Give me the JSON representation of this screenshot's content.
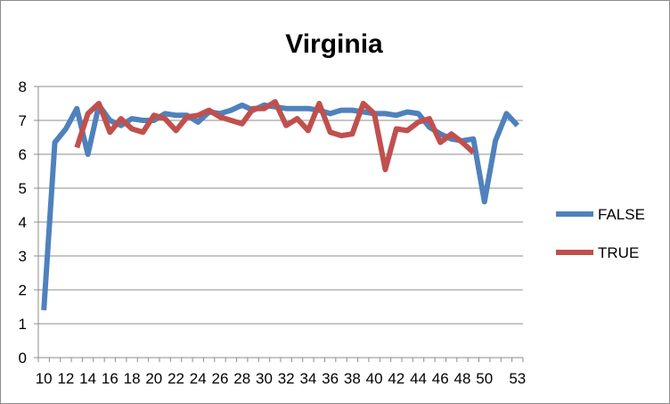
{
  "chart_data": {
    "type": "line",
    "title": "Virginia",
    "xlabel": "",
    "ylabel": "",
    "ylim": [
      0,
      8
    ],
    "yticks": [
      "0",
      "1",
      "2",
      "3",
      "4",
      "5",
      "6",
      "7",
      "8"
    ],
    "x": [
      10,
      11,
      12,
      13,
      14,
      15,
      16,
      17,
      18,
      19,
      20,
      21,
      22,
      23,
      24,
      25,
      26,
      27,
      28,
      29,
      30,
      31,
      32,
      33,
      34,
      35,
      36,
      37,
      38,
      39,
      40,
      41,
      42,
      43,
      44,
      45,
      46,
      47,
      48,
      49,
      50,
      51,
      52,
      53
    ],
    "xtick_labels": [
      "10",
      "12",
      "14",
      "16",
      "18",
      "20",
      "22",
      "24",
      "26",
      "28",
      "30",
      "32",
      "34",
      "36",
      "38",
      "40",
      "42",
      "44",
      "46",
      "48",
      "50",
      "53"
    ],
    "xtick_indices": [
      0,
      2,
      4,
      6,
      8,
      10,
      12,
      14,
      16,
      18,
      20,
      22,
      24,
      26,
      28,
      30,
      32,
      34,
      36,
      38,
      40,
      43
    ],
    "grid": true,
    "legend_position": "right",
    "series": [
      {
        "name": "FALSE",
        "color": "#4f81bd",
        "values": [
          1.4,
          6.35,
          6.75,
          7.35,
          6.0,
          7.45,
          7.0,
          6.85,
          7.05,
          7.0,
          7.0,
          7.2,
          7.15,
          7.15,
          6.95,
          7.25,
          7.2,
          7.3,
          7.45,
          7.3,
          7.45,
          7.4,
          7.35,
          7.35,
          7.35,
          7.3,
          7.2,
          7.3,
          7.3,
          7.25,
          7.2,
          7.2,
          7.15,
          7.25,
          7.2,
          6.8,
          6.6,
          6.45,
          6.4,
          6.45,
          4.6,
          6.4,
          7.2,
          6.85
        ]
      },
      {
        "name": "TRUE",
        "color": "#c0504d",
        "values": [
          null,
          null,
          null,
          6.2,
          7.2,
          7.5,
          6.65,
          7.05,
          6.75,
          6.65,
          7.15,
          7.05,
          6.7,
          7.1,
          7.15,
          7.3,
          7.1,
          7.0,
          6.9,
          7.35,
          7.35,
          7.55,
          6.85,
          7.05,
          6.7,
          7.5,
          6.65,
          6.55,
          6.6,
          7.5,
          7.2,
          5.55,
          6.75,
          6.7,
          6.95,
          7.05,
          6.35,
          6.6,
          6.35,
          6.05,
          null,
          null,
          null,
          null
        ]
      }
    ]
  }
}
